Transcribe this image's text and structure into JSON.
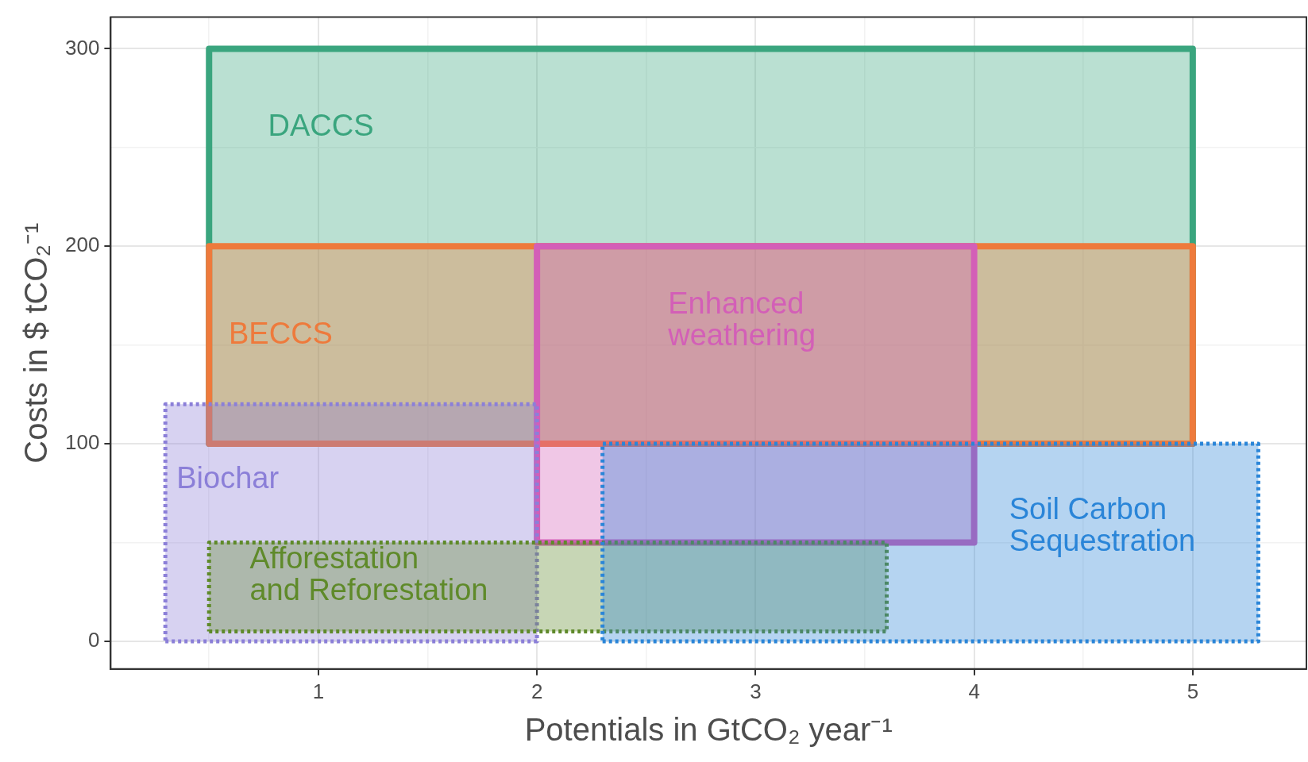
{
  "chart_data": {
    "type": "area",
    "xlabel": "Potentials in GtCO₂ year⁻¹",
    "ylabel": "Costs in $ tCO₂⁻¹",
    "xlim": [
      0.05,
      5.52
    ],
    "xticks": [
      {
        "value": 0.5,
        "label": null
      },
      1,
      {
        "value": 1.5,
        "label": null
      },
      2,
      {
        "value": 2.5,
        "label": null
      },
      3,
      {
        "value": 3.5,
        "label": null
      },
      4,
      {
        "value": 4.5,
        "label": null
      },
      5
    ],
    "ylim": [
      -14,
      316
    ],
    "yticks": [
      0,
      {
        "value": 50,
        "label": null
      },
      100,
      {
        "value": 150,
        "label": null
      },
      200,
      {
        "value": 250,
        "label": null
      },
      300
    ],
    "grid": true,
    "legend": false,
    "marker": "none",
    "series": [
      {
        "name": "DACCS",
        "color": "#3aa57e",
        "line_style": "solid",
        "x": [
          0.5,
          5,
          5,
          0.5,
          0.5
        ],
        "values": [
          100,
          100,
          300,
          300,
          100
        ]
      },
      {
        "name": "BECCS",
        "color": "#ee7a3c",
        "line_style": "solid",
        "x": [
          0.5,
          5,
          5,
          0.5,
          0.5
        ],
        "values": [
          100,
          100,
          200,
          200,
          100
        ]
      },
      {
        "name": "Enhanced weathering",
        "color": "#d35fb7",
        "line_style": "solid",
        "x": [
          2,
          4,
          4,
          2,
          2
        ],
        "values": [
          50,
          50,
          200,
          200,
          50
        ]
      },
      {
        "name": "Biochar",
        "color": "#8b7fd8",
        "line_style": "dotted",
        "x": [
          0.3,
          2,
          2,
          0.3,
          0.3
        ],
        "values": [
          0,
          0,
          120,
          120,
          0
        ]
      },
      {
        "name": "Afforestation and Reforestation",
        "color": "#5f8a2a",
        "line_style": "dotted",
        "x": [
          0.5,
          3.6,
          3.6,
          0.5,
          0.5
        ],
        "values": [
          5,
          5,
          50,
          50,
          5
        ]
      },
      {
        "name": "Soil Carbon Sequestration",
        "color": "#2a85d8",
        "line_style": "dotted",
        "x": [
          2.3,
          5.3,
          5.3,
          2.3,
          2.3
        ],
        "values": [
          0,
          0,
          100,
          100,
          0
        ]
      }
    ]
  }
}
